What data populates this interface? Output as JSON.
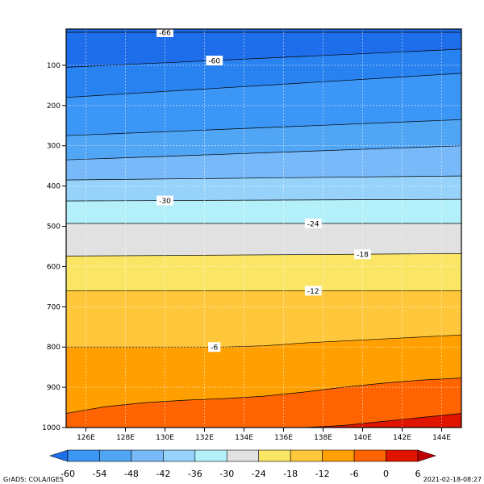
{
  "chart_data": {
    "type": "contour",
    "title": "",
    "xlabel": "",
    "ylabel": "",
    "x": {
      "range": [
        125,
        145
      ],
      "ticks": [
        126,
        128,
        130,
        132,
        134,
        136,
        138,
        140,
        142,
        144
      ],
      "tick_labels": [
        "126E",
        "128E",
        "130E",
        "132E",
        "134E",
        "136E",
        "138E",
        "140E",
        "142E",
        "144E"
      ]
    },
    "y": {
      "range": [
        1000,
        10
      ],
      "ticks": [
        100,
        200,
        300,
        400,
        500,
        600,
        700,
        800,
        900,
        1000
      ],
      "tick_labels": [
        "100",
        "200",
        "300",
        "400",
        "500",
        "600",
        "700",
        "800",
        "900",
        "1000"
      ]
    },
    "grid": true,
    "levels": [
      -60,
      -54,
      -48,
      -42,
      -36,
      -30,
      -24,
      -18,
      -12,
      -6,
      0,
      6
    ],
    "colors": [
      "#1e6eeb",
      "#2882f0",
      "#3c96f5",
      "#50a5f5",
      "#78b9fa",
      "#96d2fa",
      "#b4f0fa",
      "#e1e1e1",
      "#fae664",
      "#ffc83c",
      "#ffa000",
      "#ff6400",
      "#e11400",
      "#c00000"
    ],
    "colorbar": {
      "labels": [
        "-60",
        "-54",
        "-48",
        "-42",
        "-36",
        "-30",
        "-24",
        "-18",
        "-12",
        "-6",
        "0",
        "6"
      ],
      "box_colors": [
        "#1e6eeb",
        "#3c96f5",
        "#50a5f5",
        "#78b9fa",
        "#96d2fa",
        "#b4f0fa",
        "#e1e1e1",
        "#fae664",
        "#ffc83c",
        "#ffa000",
        "#ff6400",
        "#e11400",
        "#c00000"
      ]
    },
    "contours": [
      {
        "level": -66,
        "x": [
          125,
          145
        ],
        "y": [
          18,
          18
        ],
        "label": "-66",
        "label_x": 130,
        "band_color": "#1e6eeb"
      },
      {
        "level": -60,
        "x": [
          125,
          145
        ],
        "y": [
          105,
          60
        ],
        "label": "-60",
        "label_x": 132.5,
        "band_color": "#2882f0"
      },
      {
        "level": -54,
        "x": [
          125,
          145
        ],
        "y": [
          180,
          120
        ],
        "label": "",
        "label_x": null,
        "band_color": "#3c96f5"
      },
      {
        "level": -48,
        "x": [
          125,
          145
        ],
        "y": [
          275,
          235
        ],
        "label": "",
        "label_x": null,
        "band_color": "#50a5f5"
      },
      {
        "level": -42,
        "x": [
          125,
          145
        ],
        "y": [
          335,
          300
        ],
        "label": "",
        "label_x": null,
        "band_color": "#78b9fa"
      },
      {
        "level": -36,
        "x": [
          125,
          145
        ],
        "y": [
          385,
          375
        ],
        "label": "",
        "label_x": null,
        "band_color": "#96d2fa"
      },
      {
        "level": -30,
        "x": [
          125,
          145
        ],
        "y": [
          437,
          433
        ],
        "label": "-30",
        "label_x": 130,
        "band_color": "#b4f0fa"
      },
      {
        "level": -24,
        "x": [
          125,
          145
        ],
        "y": [
          493,
          493
        ],
        "label": "-24",
        "label_x": 137.5,
        "band_color": "#e1e1e1"
      },
      {
        "level": -18,
        "x": [
          125,
          145
        ],
        "y": [
          574,
          568
        ],
        "label": "-18",
        "label_x": 140,
        "band_color": "#fae664"
      },
      {
        "level": -12,
        "x": [
          125,
          145
        ],
        "y": [
          660,
          660
        ],
        "label": "-12",
        "label_x": 137.5,
        "band_color": "#ffc83c"
      },
      {
        "level": -6,
        "x": [
          125,
          127,
          129,
          131,
          133,
          135,
          137,
          139,
          141,
          143,
          145
        ],
        "y": [
          800,
          800,
          800,
          800,
          800,
          797,
          790,
          785,
          780,
          775,
          770
        ],
        "label": "-6",
        "label_x": 132.5,
        "band_color": "#ffa000"
      },
      {
        "level": 0,
        "x": [
          125,
          127,
          129,
          131,
          133,
          135,
          137,
          139,
          141,
          143,
          145
        ],
        "y": [
          965,
          948,
          938,
          932,
          928,
          922,
          912,
          900,
          890,
          882,
          877
        ],
        "label": "",
        "label_x": null,
        "band_color": "#ff6400"
      },
      {
        "level": 6,
        "x": [
          137,
          139,
          141,
          143,
          145
        ],
        "y": [
          1000,
          995,
          985,
          975,
          965
        ],
        "label": "",
        "label_x": null,
        "band_color": "#e11400"
      }
    ],
    "top_band_color": "#1e6eeb",
    "bottom_band_color": "#c00000"
  },
  "footer": {
    "left": "GrADS: COLA/IGES",
    "right": "2021-02-18-08:27"
  }
}
